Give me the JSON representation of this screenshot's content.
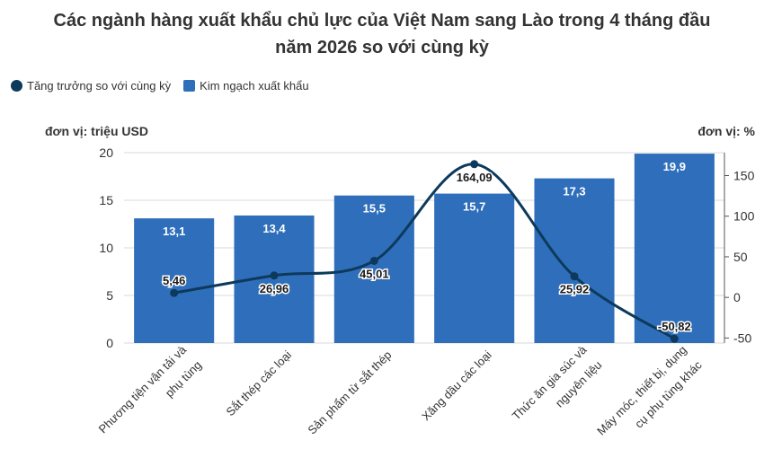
{
  "title_line1": "Các ngành hàng xuất khẩu chủ lực của Việt Nam sang Lào trong 4 tháng đầu",
  "title_line2": "năm 2026 so với cùng kỳ",
  "legend": [
    {
      "label": "Tăng trưởng so với cùng kỳ",
      "color": "#0d3a5c"
    },
    {
      "label": "Kim ngạch xuất khẩu",
      "color": "#2f6eba"
    }
  ],
  "unit_left": "đơn vị: triệu USD",
  "unit_right": "đơn vị: %",
  "chart_data": {
    "type": "bar",
    "categories": [
      [
        "Phương tiện vận tải và",
        "phụ tùng"
      ],
      [
        "Sắt thép các loại"
      ],
      [
        "Sản phẩm từ sắt thép"
      ],
      [
        "Xăng dầu các loại"
      ],
      [
        "Thức ăn gia súc và",
        "nguyên liệu"
      ],
      [
        "Máy móc, thiết bị, dụng",
        "cụ phụ tùng khác"
      ]
    ],
    "series": [
      {
        "name": "Kim ngạch xuất khẩu",
        "type": "bar",
        "axis": "left",
        "values": [
          13.1,
          13.4,
          15.5,
          15.7,
          17.3,
          19.9
        ],
        "labels": [
          "13,1",
          "13,4",
          "15,5",
          "15,7",
          "17,3",
          "19,9"
        ]
      },
      {
        "name": "Tăng trưởng so với cùng kỳ",
        "type": "line",
        "axis": "right",
        "values": [
          5.46,
          26.96,
          45.01,
          164.09,
          25.92,
          -50.82
        ],
        "labels": [
          "5,46",
          "26,96",
          "45,01",
          "164,09",
          "25,92",
          "-50,82"
        ]
      }
    ],
    "y_left": {
      "ticks": [
        0,
        5,
        10,
        15,
        20
      ],
      "ylim": [
        0,
        20
      ]
    },
    "y_right": {
      "ticks": [
        -50,
        0,
        50,
        100,
        150
      ],
      "ylim": [
        -56.2,
        178.2
      ]
    },
    "grid": true,
    "legend_position": "top-left",
    "colors": {
      "bar": "#2f6eba",
      "line": "#0d3a5c"
    }
  }
}
